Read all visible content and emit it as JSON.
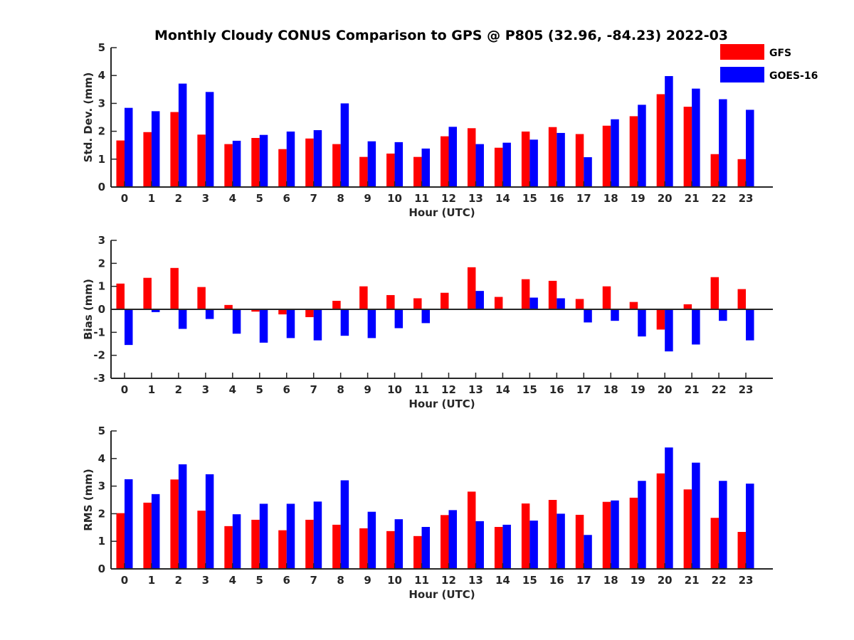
{
  "chart_data": [
    {
      "type": "bar",
      "title": "Monthly Cloudy CONUS Comparison to GPS @ P805 (32.96, -84.23) 2022-03",
      "xlabel": "Hour (UTC)",
      "ylabel": "Std. Dev. (mm)",
      "ylim": [
        0,
        5
      ],
      "yticks": [
        "0",
        "1",
        "2",
        "3",
        "4",
        "5"
      ],
      "categories": [
        "0",
        "1",
        "2",
        "3",
        "4",
        "5",
        "6",
        "7",
        "8",
        "9",
        "10",
        "11",
        "12",
        "13",
        "14",
        "15",
        "16",
        "17",
        "18",
        "19",
        "20",
        "21",
        "22",
        "23"
      ],
      "legend": {
        "placement": "top-right",
        "entries": [
          "GFS",
          "GOES-16"
        ]
      },
      "series": [
        {
          "name": "GFS",
          "color": "#ff0000",
          "values": [
            1.67,
            1.97,
            2.69,
            1.88,
            1.54,
            1.76,
            1.36,
            1.74,
            1.54,
            1.08,
            1.2,
            1.08,
            1.82,
            2.11,
            1.41,
            1.99,
            2.15,
            1.9,
            2.2,
            2.54,
            3.33,
            2.88,
            1.18,
            1.0
          ]
        },
        {
          "name": "GOES-16",
          "color": "#0000ff",
          "values": [
            2.84,
            2.72,
            3.71,
            3.41,
            1.66,
            1.87,
            1.99,
            2.04,
            3.0,
            1.64,
            1.61,
            1.38,
            2.16,
            1.54,
            1.59,
            1.7,
            1.94,
            1.07,
            2.43,
            2.95,
            3.98,
            3.53,
            3.15,
            2.77
          ]
        }
      ]
    },
    {
      "type": "bar",
      "xlabel": "Hour (UTC)",
      "ylabel": "Bias (mm)",
      "ylim": [
        -3,
        3
      ],
      "yticks": [
        "-3",
        "-2",
        "-1",
        "0",
        "1",
        "2",
        "3"
      ],
      "categories": [
        "0",
        "1",
        "2",
        "3",
        "4",
        "5",
        "6",
        "7",
        "8",
        "9",
        "10",
        "11",
        "12",
        "13",
        "14",
        "15",
        "16",
        "17",
        "18",
        "19",
        "20",
        "21",
        "22",
        "23"
      ],
      "series": [
        {
          "name": "GFS",
          "color": "#ff0000",
          "values": [
            1.12,
            1.37,
            1.8,
            0.97,
            0.19,
            -0.1,
            -0.22,
            -0.34,
            0.37,
            1.0,
            0.62,
            0.48,
            0.72,
            1.83,
            0.54,
            1.31,
            1.24,
            0.45,
            1.0,
            0.32,
            -0.88,
            0.22,
            1.4,
            0.88
          ]
        },
        {
          "name": "GOES-16",
          "color": "#0000ff",
          "values": [
            -1.55,
            -0.12,
            -0.85,
            -0.42,
            -1.06,
            -1.45,
            -1.25,
            -1.35,
            -1.15,
            -1.25,
            -0.82,
            -0.6,
            0.03,
            0.8,
            -0.03,
            0.51,
            0.48,
            -0.57,
            -0.5,
            -1.18,
            -1.83,
            -1.53,
            -0.5,
            -1.35
          ]
        }
      ]
    },
    {
      "type": "bar",
      "xlabel": "Hour (UTC)",
      "ylabel": "RMS (mm)",
      "ylim": [
        0,
        5
      ],
      "yticks": [
        "0",
        "1",
        "2",
        "3",
        "4",
        "5"
      ],
      "categories": [
        "0",
        "1",
        "2",
        "3",
        "4",
        "5",
        "6",
        "7",
        "8",
        "9",
        "10",
        "11",
        "12",
        "13",
        "14",
        "15",
        "16",
        "17",
        "18",
        "19",
        "20",
        "21",
        "22",
        "23"
      ],
      "series": [
        {
          "name": "GFS",
          "color": "#ff0000",
          "values": [
            2.02,
            2.4,
            3.24,
            2.11,
            1.55,
            1.78,
            1.4,
            1.78,
            1.6,
            1.47,
            1.37,
            1.19,
            1.95,
            2.8,
            1.52,
            2.37,
            2.5,
            1.96,
            2.43,
            2.58,
            3.46,
            2.88,
            1.85,
            1.34
          ]
        },
        {
          "name": "GOES-16",
          "color": "#0000ff",
          "values": [
            3.25,
            2.71,
            3.79,
            3.43,
            1.98,
            2.36,
            2.36,
            2.44,
            3.21,
            2.07,
            1.8,
            1.52,
            2.13,
            1.73,
            1.6,
            1.75,
            2.0,
            1.23,
            2.48,
            3.19,
            4.4,
            3.85,
            3.19,
            3.09
          ]
        }
      ]
    }
  ]
}
